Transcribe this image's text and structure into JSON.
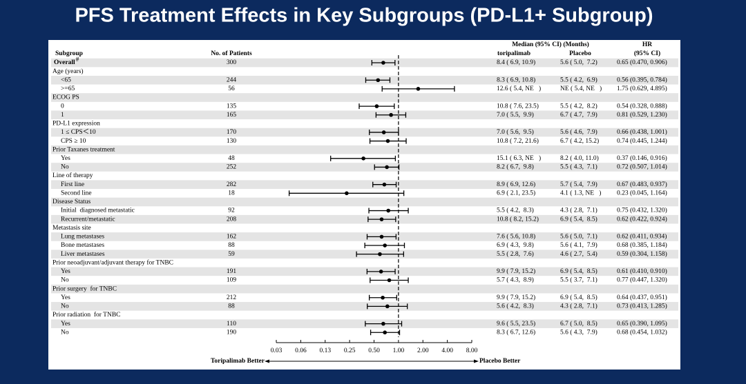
{
  "chart_data": {
    "type": "forest",
    "title": "PFS Treatment Effects in Key Subgroups (PD-L1+ Subgroup)",
    "columns": {
      "subgroup": "Subgroup",
      "patients": "No. of Patients",
      "median": "Median (95% CI) (Months)",
      "toripalimab": "toripalimab",
      "placebo": "Placebo",
      "hr": "HR",
      "hr_ci": "(95% CI)"
    },
    "xlim": [
      0.03125,
      8
    ],
    "log_scale": true,
    "reference": 1,
    "xticks": [
      {
        "value": 0.03125,
        "label": "0.03"
      },
      {
        "value": 0.0625,
        "label": "0.06"
      },
      {
        "value": 0.125,
        "label": "0.13"
      },
      0.25,
      {
        "value": 0.5,
        "label": "0.50"
      },
      {
        "value": 1,
        "label": "1.00"
      },
      {
        "value": 2,
        "label": "2.00"
      },
      {
        "value": 4,
        "label": "4.00"
      },
      {
        "value": 8,
        "label": "8.00"
      }
    ],
    "left_label": "Toripalimab Better",
    "right_label": "Placebo Better",
    "color": "#000000",
    "overall": {
      "label": "Overall",
      "note": "#",
      "n": 300,
      "toripalimab": "8.4 ( 6.9, 10.9)",
      "placebo": "5.6 ( 5.0,  7.2)",
      "hr_text": "0.65 (0.470, 0.906)",
      "hr": 0.65,
      "lo": 0.47,
      "hi": 0.906
    },
    "groups": [
      {
        "label": "Age (years)",
        "rows": [
          {
            "label": "<65",
            "n": 244,
            "toripalimab": "8.3 ( 6.9, 10.8)",
            "placebo": "5.5 ( 4.2,  6.9)",
            "hr_text": "0.56 (0.395, 0.784)",
            "hr": 0.56,
            "lo": 0.395,
            "hi": 0.784
          },
          {
            "label": ">=65",
            "n": 56,
            "toripalimab": "12.6 ( 5.4, NE   )",
            "placebo": "NE ( 5.4, NE   )",
            "hr_text": "1.75 (0.629, 4.895)",
            "hr": 1.75,
            "lo": 0.629,
            "hi": 4.895
          }
        ]
      },
      {
        "label": "ECOG PS",
        "rows": [
          {
            "label": "0",
            "n": 135,
            "toripalimab": "10.8 ( 7.6, 23.5)",
            "placebo": "5.5 ( 4.2,  8.2)",
            "hr_text": "0.54 (0.328, 0.888)",
            "hr": 0.54,
            "lo": 0.328,
            "hi": 0.888
          },
          {
            "label": "1",
            "n": 165,
            "toripalimab": "7.0 ( 5.5,  9.9)",
            "placebo": "6.7 ( 4.7,  7.9)",
            "hr_text": "0.81 (0.529, 1.230)",
            "hr": 0.81,
            "lo": 0.529,
            "hi": 1.23
          }
        ]
      },
      {
        "label": "PD-L1 expression",
        "rows": [
          {
            "label": "1 ≤ CPS＜10",
            "n": 170,
            "toripalimab": "7.0 ( 5.6,  9.5)",
            "placebo": "5.6 ( 4.6,  7.9)",
            "hr_text": "0.66 (0.438, 1.001)",
            "hr": 0.66,
            "lo": 0.438,
            "hi": 1.001
          },
          {
            "label": "CPS ≥ 10",
            "n": 130,
            "toripalimab": "10.8 ( 7.2, 21.6)",
            "placebo": "6.7 ( 4.2, 15.2)",
            "hr_text": "0.74 (0.445, 1.244)",
            "hr": 0.74,
            "lo": 0.445,
            "hi": 1.244
          }
        ]
      },
      {
        "label": "Prior Taxanes treatment",
        "rows": [
          {
            "label": "Yes",
            "n": 48,
            "toripalimab": "15.1 ( 6.3, NE   )",
            "placebo": "8.2 ( 4.0, 11.0)",
            "hr_text": "0.37 (0.146, 0.916)",
            "hr": 0.37,
            "lo": 0.146,
            "hi": 0.916
          },
          {
            "label": "No",
            "n": 252,
            "toripalimab": "8.2 ( 6.7,  9.8)",
            "placebo": "5.5 ( 4.3,  7.1)",
            "hr_text": "0.72 (0.507, 1.014)",
            "hr": 0.72,
            "lo": 0.507,
            "hi": 1.014
          }
        ]
      },
      {
        "label": "Line of therapy",
        "rows": [
          {
            "label": "First line",
            "n": 282,
            "toripalimab": "8.9 ( 6.9, 12.6)",
            "placebo": "5.7 ( 5.4,  7.9)",
            "hr_text": "0.67 (0.483, 0.937)",
            "hr": 0.67,
            "lo": 0.483,
            "hi": 0.937
          },
          {
            "label": "Second line",
            "n": 18,
            "toripalimab": "6.9 ( 2.1, 23.5)",
            "placebo": "4.1 ( 1.3, NE   )",
            "hr_text": "0.23 (0.045, 1.164)",
            "hr": 0.23,
            "lo": 0.045,
            "hi": 1.164
          }
        ]
      },
      {
        "label": "Disease Status",
        "rows": [
          {
            "label": "Initial  diagnosed metastatic",
            "n": 92,
            "toripalimab": "5.5 ( 4.2,  8.3)",
            "placebo": "4.3 ( 2.8,  7.1)",
            "hr_text": "0.75 (0.432, 1.320)",
            "hr": 0.75,
            "lo": 0.432,
            "hi": 1.32
          },
          {
            "label": "Recurrent/metastatic",
            "n": 208,
            "toripalimab": "10.8 ( 8.2, 15.2)",
            "placebo": "6.9 ( 5.4,  8.5)",
            "hr_text": "0.62 (0.422, 0.924)",
            "hr": 0.62,
            "lo": 0.422,
            "hi": 0.924
          }
        ]
      },
      {
        "label": "Metastasis site",
        "rows": [
          {
            "label": "Lung metastases",
            "n": 162,
            "toripalimab": "7.6 ( 5.6, 10.8)",
            "placebo": "5.6 ( 5.0,  7.1)",
            "hr_text": "0.62 (0.411, 0.934)",
            "hr": 0.62,
            "lo": 0.411,
            "hi": 0.934
          },
          {
            "label": "Bone metastases",
            "n": 88,
            "toripalimab": "6.9 ( 4.3,  9.8)",
            "placebo": "5.6 ( 4.1,  7.9)",
            "hr_text": "0.68 (0.385, 1.184)",
            "hr": 0.68,
            "lo": 0.385,
            "hi": 1.184
          },
          {
            "label": "Liver metastases",
            "n": 59,
            "toripalimab": "5.5 ( 2.8,  7.6)",
            "placebo": "4.6 ( 2.7,  5.4)",
            "hr_text": "0.59 (0.304, 1.158)",
            "hr": 0.59,
            "lo": 0.304,
            "hi": 1.158
          }
        ]
      },
      {
        "label": "Prior neoadjuvant/adjuvant therapy for TNBC",
        "rows": [
          {
            "label": "Yes",
            "n": 191,
            "toripalimab": "9.9 ( 7.9, 15.2)",
            "placebo": "6.9 ( 5.4,  8.5)",
            "hr_text": "0.61 (0.410, 0.910)",
            "hr": 0.61,
            "lo": 0.41,
            "hi": 0.91
          },
          {
            "label": "No",
            "n": 109,
            "toripalimab": "5.7 ( 4.3,  8.9)",
            "placebo": "5.5 ( 3.7,  7.1)",
            "hr_text": "0.77 (0.447, 1.320)",
            "hr": 0.77,
            "lo": 0.447,
            "hi": 1.32
          }
        ]
      },
      {
        "label": "Prior surgery  for TNBC",
        "rows": [
          {
            "label": "Yes",
            "n": 212,
            "toripalimab": "9.9 ( 7.9, 15.2)",
            "placebo": "6.9 ( 5.4,  8.5)",
            "hr_text": "0.64 (0.437, 0.951)",
            "hr": 0.64,
            "lo": 0.437,
            "hi": 0.951
          },
          {
            "label": "No",
            "n": 88,
            "toripalimab": "5.6 ( 4.2,  8.3)",
            "placebo": "4.3 ( 2.8,  7.1)",
            "hr_text": "0.73 (0.413, 1.285)",
            "hr": 0.73,
            "lo": 0.413,
            "hi": 1.285
          }
        ]
      },
      {
        "label": "Prior radiation  for TNBC",
        "rows": [
          {
            "label": "Yes",
            "n": 110,
            "toripalimab": "9.6 ( 5.5, 23.5)",
            "placebo": "6.7 ( 5.0,  8.5)",
            "hr_text": "0.65 (0.390, 1.095)",
            "hr": 0.65,
            "lo": 0.39,
            "hi": 1.095
          },
          {
            "label": "No",
            "n": 190,
            "toripalimab": "8.3 ( 6.7, 12.6)",
            "placebo": "5.6 ( 4.3,  7.9)",
            "hr_text": "0.68 (0.454, 1.032)",
            "hr": 0.68,
            "lo": 0.454,
            "hi": 1.032
          }
        ]
      }
    ]
  }
}
